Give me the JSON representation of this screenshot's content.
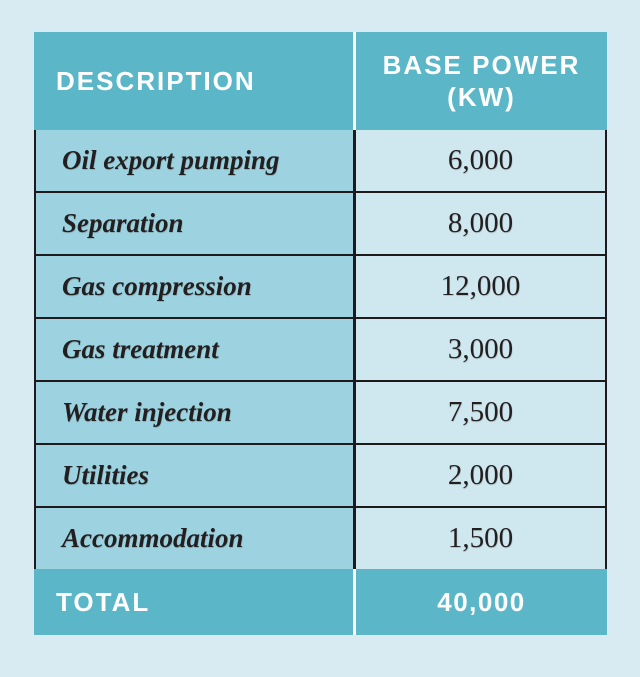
{
  "colors": {
    "page_bg": "#d9ebf2",
    "header_bg": "#5bb7c8",
    "row_label_bg": "#9dd3e0",
    "row_value_bg": "#cfe7ef",
    "border": "#1e1a1b",
    "header_text": "#ffffff",
    "body_text": "#231f20"
  },
  "table": {
    "header": {
      "description": "DESCRIPTION",
      "base_power": "BASE POWER (KW)"
    },
    "rows": [
      {
        "description": "Oil export pumping",
        "value": "6,000"
      },
      {
        "description": "Separation",
        "value": "8,000"
      },
      {
        "description": "Gas compression",
        "value": "12,000"
      },
      {
        "description": "Gas treatment",
        "value": "3,000"
      },
      {
        "description": "Water injection",
        "value": "7,500"
      },
      {
        "description": "Utilities",
        "value": "2,000"
      },
      {
        "description": "Accommodation",
        "value": "1,500"
      }
    ],
    "total": {
      "label": "TOTAL",
      "value": "40,000"
    }
  }
}
